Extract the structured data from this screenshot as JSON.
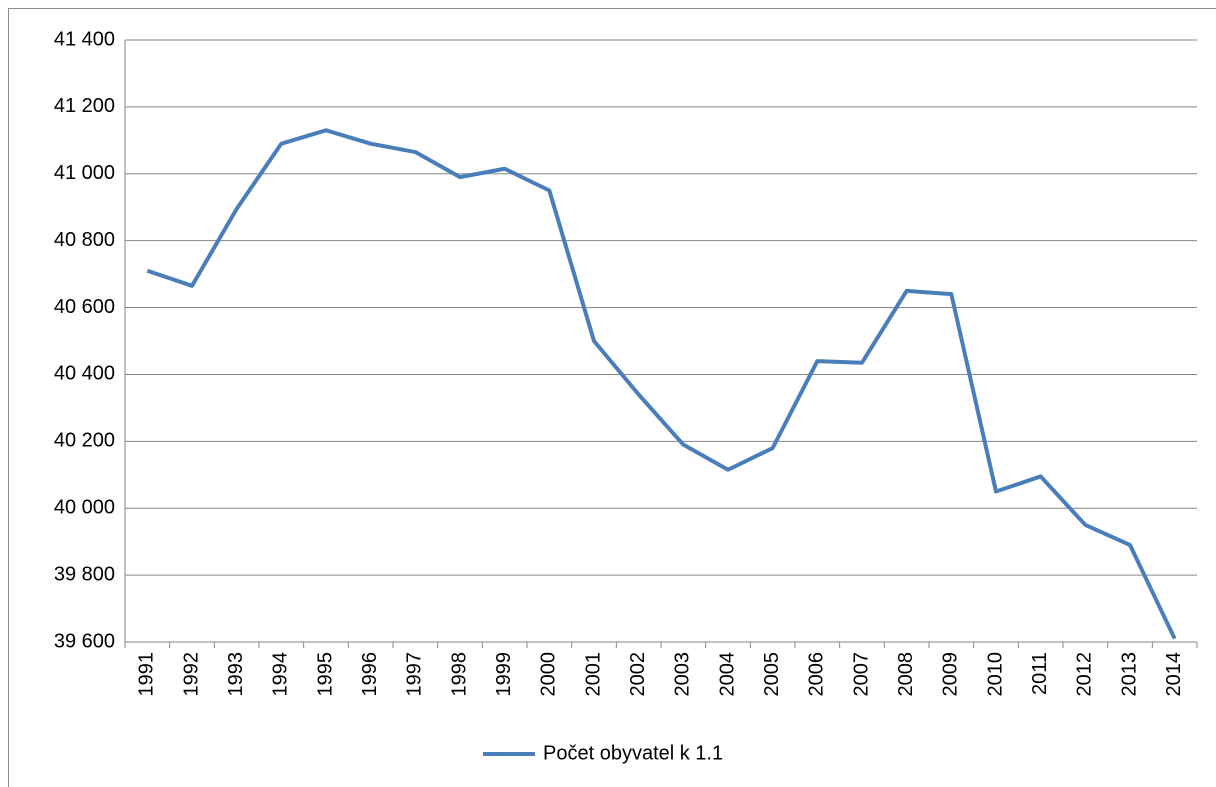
{
  "chart_data": {
    "type": "line",
    "categories": [
      "1991",
      "1992",
      "1993",
      "1994",
      "1995",
      "1996",
      "1997",
      "1998",
      "1999",
      "2000",
      "2001",
      "2002",
      "2003",
      "2004",
      "2005",
      "2006",
      "2007",
      "2008",
      "2009",
      "2010",
      "2011",
      "2012",
      "2013",
      "2014"
    ],
    "series": [
      {
        "name": "Počet obyvatel k 1.1",
        "color": "#4a7ebb",
        "values": [
          40710,
          40665,
          40895,
          41090,
          41130,
          41090,
          41065,
          40990,
          41015,
          40950,
          40500,
          40340,
          40190,
          40115,
          40180,
          40440,
          40435,
          40650,
          40640,
          40050,
          40095,
          39950,
          39890,
          39610
        ]
      }
    ],
    "ylim": [
      39600,
      41400
    ],
    "yticks": [
      {
        "value": 39600,
        "label": "39 600"
      },
      {
        "value": 39800,
        "label": "39 800"
      },
      {
        "value": 40000,
        "label": "40 000"
      },
      {
        "value": 40200,
        "label": "40 200"
      },
      {
        "value": 40400,
        "label": "40 400"
      },
      {
        "value": 40600,
        "label": "40 600"
      },
      {
        "value": 40800,
        "label": "40 800"
      },
      {
        "value": 41000,
        "label": "41 000"
      },
      {
        "value": 41200,
        "label": "41 200"
      },
      {
        "value": 41400,
        "label": "41 400"
      }
    ],
    "grid": true,
    "legend": "bottom"
  }
}
